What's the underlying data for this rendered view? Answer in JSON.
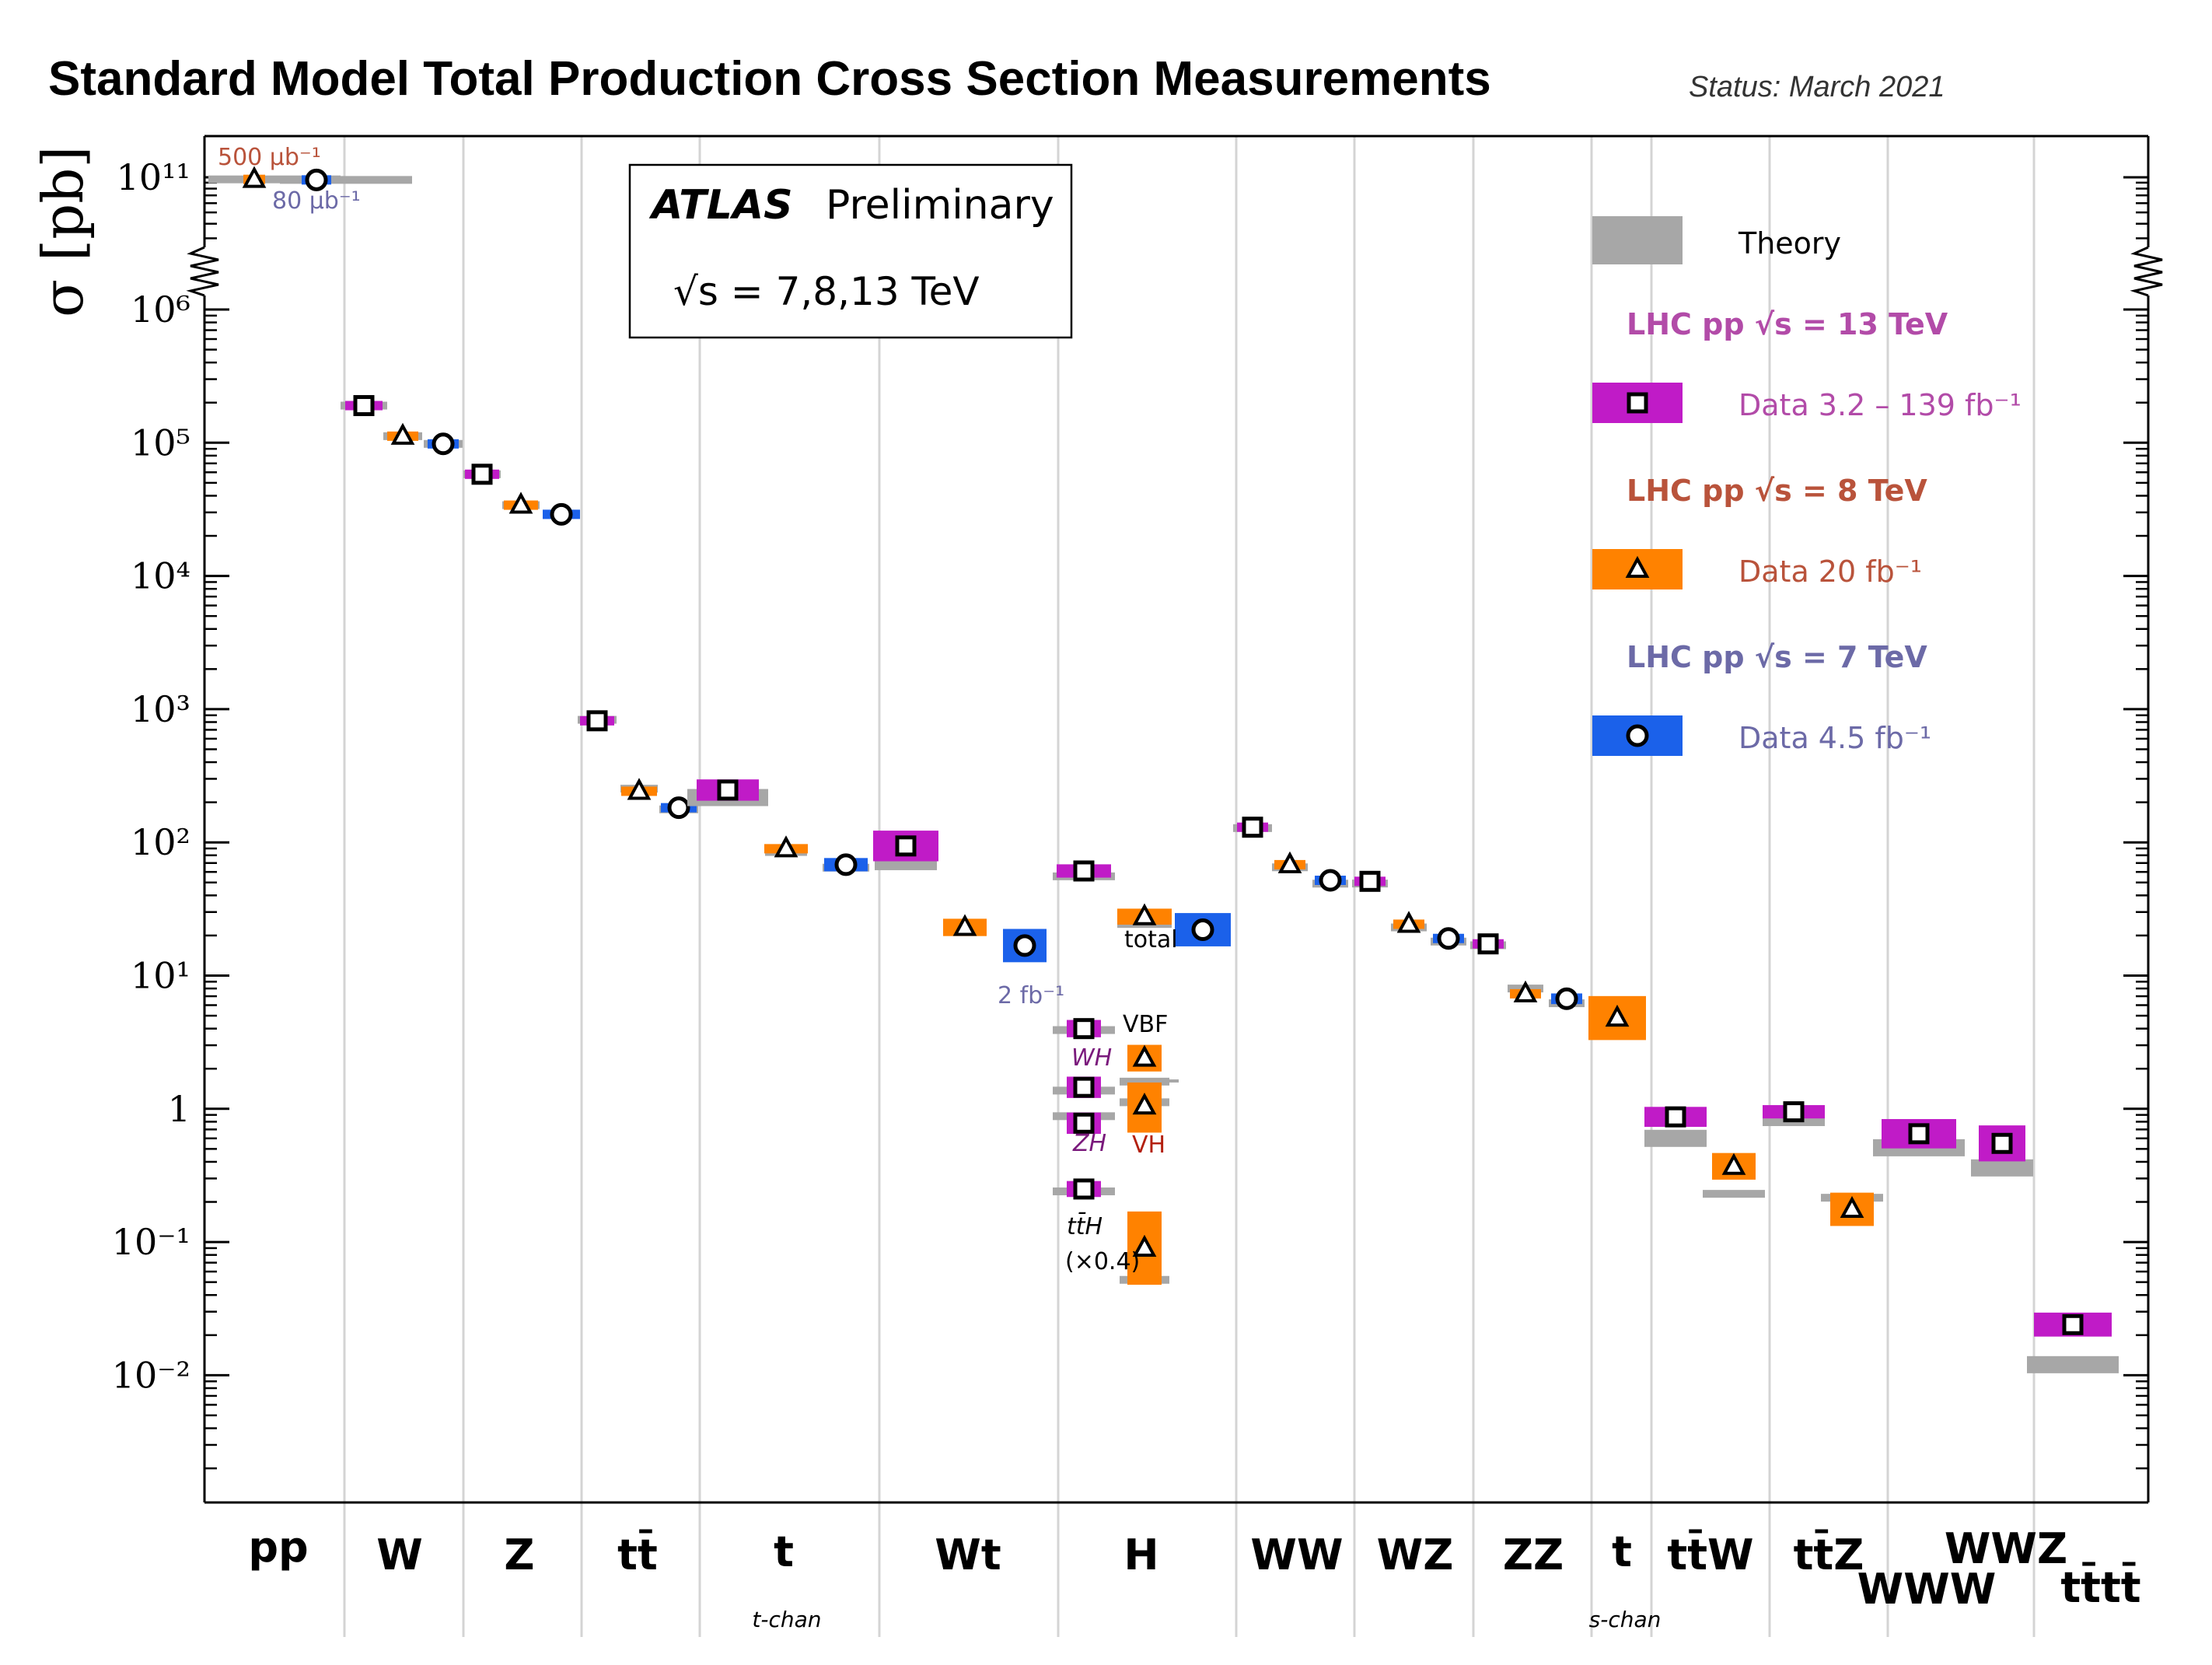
{
  "header": {
    "title": "Standard Model Total Production Cross Section Measurements",
    "status": "Status: March 2021"
  },
  "experiment_box": {
    "name": "ATLAS",
    "label": "Preliminary",
    "energy": "√s = 7,8,13 TeV"
  },
  "legend": {
    "theory": "Theory",
    "groups": [
      {
        "title": "LHC pp  √s = 13 TeV",
        "data": "Data  3.2 – 139 fb⁻¹",
        "color": "#b24ba8",
        "fill": "#c01bc7",
        "marker": "square"
      },
      {
        "title": "LHC pp  √s = 8 TeV",
        "data": "Data  20 fb⁻¹",
        "color": "#b9533b",
        "fill": "#ff8200",
        "marker": "triangle"
      },
      {
        "title": "LHC pp  √s = 7 TeV",
        "data": "Data  4.5 fb⁻¹",
        "color": "#6c6aa7",
        "fill": "#1b61ea",
        "marker": "circle"
      }
    ]
  },
  "colors": {
    "s13": "#c01bc7",
    "s8": "#ff8200",
    "s7": "#1b61ea",
    "theory": "#a7a7a7",
    "divider": "#d4d4d4"
  },
  "annotations": {
    "pp_8": "500 μb⁻¹",
    "pp_7": "80 μb⁻¹",
    "wt_lumi": "2 fb⁻¹",
    "h_total": "total",
    "h_vbf": "VBF",
    "h_wh": "WH",
    "h_zh": "ZH",
    "h_vh": "VH",
    "h_tth": "tt̄H",
    "h_tth_scale": "(×0.4)"
  },
  "chart_data": {
    "type": "scatter",
    "title": "Standard Model Total Production Cross Section Measurements",
    "ylabel": "σ [pb]",
    "yscale": "log (broken axis between 10^6 and 10^11)",
    "ylim": [
      0.0001,
      100000000000
    ],
    "grid": false,
    "legend_position": "top-right",
    "y_tick_labels": [
      "10¹¹",
      "10⁶",
      "10⁵",
      "10⁴",
      "10³",
      "10²",
      "10¹",
      "1",
      "10⁻¹",
      "10⁻²"
    ],
    "categories": [
      {
        "label": "pp",
        "sub": ""
      },
      {
        "label": "W",
        "sub": ""
      },
      {
        "label": "Z",
        "sub": ""
      },
      {
        "label": "tt̄",
        "sub": ""
      },
      {
        "label": "t",
        "sub": "t-chan"
      },
      {
        "label": "Wt",
        "sub": ""
      },
      {
        "label": "H",
        "sub": ""
      },
      {
        "label": "WW",
        "sub": ""
      },
      {
        "label": "WZ",
        "sub": ""
      },
      {
        "label": "ZZ",
        "sub": ""
      },
      {
        "label": "t",
        "sub": "s-chan"
      },
      {
        "label": "tt̄W",
        "sub": ""
      },
      {
        "label": "tt̄Z",
        "sub": ""
      },
      {
        "label": "WWW",
        "sub": ""
      },
      {
        "label": "WWZ",
        "sub": ""
      },
      {
        "label": "tt̄tt̄",
        "sub": ""
      }
    ],
    "measurements": [
      {
        "process": "pp",
        "sqrt_s": 8,
        "value": 96000000000,
        "theory": 96000000000,
        "box_decades": 0.04
      },
      {
        "process": "pp",
        "sqrt_s": 7,
        "value": 95000000000,
        "theory": 95000000000,
        "box_decades": 0.04
      },
      {
        "process": "W",
        "sqrt_s": 13,
        "value": 190000,
        "theory": 190000,
        "box_decades": 0.04
      },
      {
        "process": "W",
        "sqrt_s": 8,
        "value": 112000,
        "theory": 112000,
        "box_decades": 0.03
      },
      {
        "process": "W",
        "sqrt_s": 7,
        "value": 98000,
        "theory": 98000,
        "box_decades": 0.03
      },
      {
        "process": "Z",
        "sqrt_s": 13,
        "value": 58000,
        "theory": 58000,
        "box_decades": 0.04
      },
      {
        "process": "Z",
        "sqrt_s": 8,
        "value": 34000,
        "theory": 34000,
        "box_decades": 0.03
      },
      {
        "process": "Z",
        "sqrt_s": 7,
        "value": 29000,
        "theory": 29000,
        "box_decades": 0.03
      },
      {
        "process": "tt̄",
        "sqrt_s": 13,
        "value": 818,
        "theory": 832,
        "box_decades": 0.05
      },
      {
        "process": "tt̄",
        "sqrt_s": 8,
        "value": 242,
        "theory": 253,
        "box_decades": 0.04
      },
      {
        "process": "tt̄",
        "sqrt_s": 7,
        "value": 182,
        "theory": 177,
        "box_decades": 0.04
      },
      {
        "process": "t-chan",
        "sqrt_s": 13,
        "value": 247,
        "theory": 217,
        "box_decades": 0.16
      },
      {
        "process": "t-chan",
        "sqrt_s": 8,
        "value": 89.6,
        "theory": 84.7,
        "box_decades": 0.07
      },
      {
        "process": "t-chan",
        "sqrt_s": 7,
        "value": 68,
        "theory": 64.6,
        "box_decades": 0.1
      },
      {
        "process": "Wt",
        "sqrt_s": 13,
        "value": 94,
        "theory": 71.7,
        "box_decades": 0.23
      },
      {
        "process": "Wt",
        "sqrt_s": 8,
        "value": 23,
        "theory": 22.4,
        "box_decades": 0.13
      },
      {
        "process": "Wt",
        "sqrt_s": 7,
        "value": 16.8,
        "theory": 15.7,
        "box_decades": 0.25
      },
      {
        "process": "H total",
        "sqrt_s": 13,
        "value": 61,
        "theory": 55.6,
        "box_decades": 0.1
      },
      {
        "process": "H total",
        "sqrt_s": 8,
        "value": 27.7,
        "theory": 24.4,
        "box_decades": 0.12
      },
      {
        "process": "H total",
        "sqrt_s": 7,
        "value": 22.1,
        "theory": 19.2,
        "box_decades": 0.25
      },
      {
        "process": "H VBF",
        "sqrt_s": 13,
        "value": 4.0,
        "theory": 3.9,
        "box_decades": 0.13
      },
      {
        "process": "H VBF",
        "sqrt_s": 8,
        "value": 2.4,
        "theory": 1.6,
        "box_decades": 0.2
      },
      {
        "process": "H WH",
        "sqrt_s": 13,
        "value": 1.45,
        "theory": 1.37,
        "box_decades": 0.16
      },
      {
        "process": "H ZH",
        "sqrt_s": 13,
        "value": 0.78,
        "theory": 0.88,
        "box_decades": 0.16
      },
      {
        "process": "H VH",
        "sqrt_s": 8,
        "value": 1.05,
        "theory": 1.12,
        "box_decades": 0.4
      },
      {
        "process": "H tt̄H (×0.4)",
        "sqrt_s": 13,
        "value": 0.25,
        "theory": 0.24,
        "box_decades": 0.12
      },
      {
        "process": "H tt̄H (×0.4)",
        "sqrt_s": 8,
        "value": 0.09,
        "theory": 0.052,
        "box_decades": 0.55
      },
      {
        "process": "WW",
        "sqrt_s": 13,
        "value": 130,
        "theory": 128,
        "box_decades": 0.06
      },
      {
        "process": "WW",
        "sqrt_s": 8,
        "value": 68,
        "theory": 65,
        "box_decades": 0.06
      },
      {
        "process": "WW",
        "sqrt_s": 7,
        "value": 51.9,
        "theory": 49.0,
        "box_decades": 0.06
      },
      {
        "process": "WZ",
        "sqrt_s": 13,
        "value": 51,
        "theory": 49.1,
        "box_decades": 0.06
      },
      {
        "process": "WZ",
        "sqrt_s": 8,
        "value": 24.3,
        "theory": 23.0,
        "box_decades": 0.06
      },
      {
        "process": "WZ",
        "sqrt_s": 7,
        "value": 19.0,
        "theory": 18.0,
        "box_decades": 0.06
      },
      {
        "process": "ZZ",
        "sqrt_s": 13,
        "value": 17.3,
        "theory": 16.9,
        "box_decades": 0.06
      },
      {
        "process": "ZZ",
        "sqrt_s": 8,
        "value": 7.3,
        "theory": 8.0,
        "box_decades": 0.06
      },
      {
        "process": "ZZ",
        "sqrt_s": 7,
        "value": 6.7,
        "theory": 6.2,
        "box_decades": 0.08
      },
      {
        "process": "s-chan",
        "sqrt_s": 8,
        "value": 4.8,
        "theory": 5.6,
        "box_decades": 0.33
      },
      {
        "process": "tt̄W",
        "sqrt_s": 13,
        "value": 0.87,
        "theory": 0.6,
        "box_decades": 0.15
      },
      {
        "process": "tt̄W",
        "sqrt_s": 8,
        "value": 0.37,
        "theory": 0.23,
        "box_decades": 0.2
      },
      {
        "process": "tt̄Z",
        "sqrt_s": 13,
        "value": 0.95,
        "theory": 0.86,
        "box_decades": 0.1
      },
      {
        "process": "tt̄Z",
        "sqrt_s": 8,
        "value": 0.176,
        "theory": 0.215,
        "box_decades": 0.25
      },
      {
        "process": "WWW",
        "sqrt_s": 13,
        "value": 0.65,
        "theory": 0.51,
        "box_decades": 0.22
      },
      {
        "process": "WWZ",
        "sqrt_s": 13,
        "value": 0.55,
        "theory": 0.36,
        "box_decades": 0.27
      },
      {
        "process": "tt̄tt̄",
        "sqrt_s": 13,
        "value": 0.024,
        "theory": 0.012,
        "box_decades": 0.18
      }
    ]
  }
}
